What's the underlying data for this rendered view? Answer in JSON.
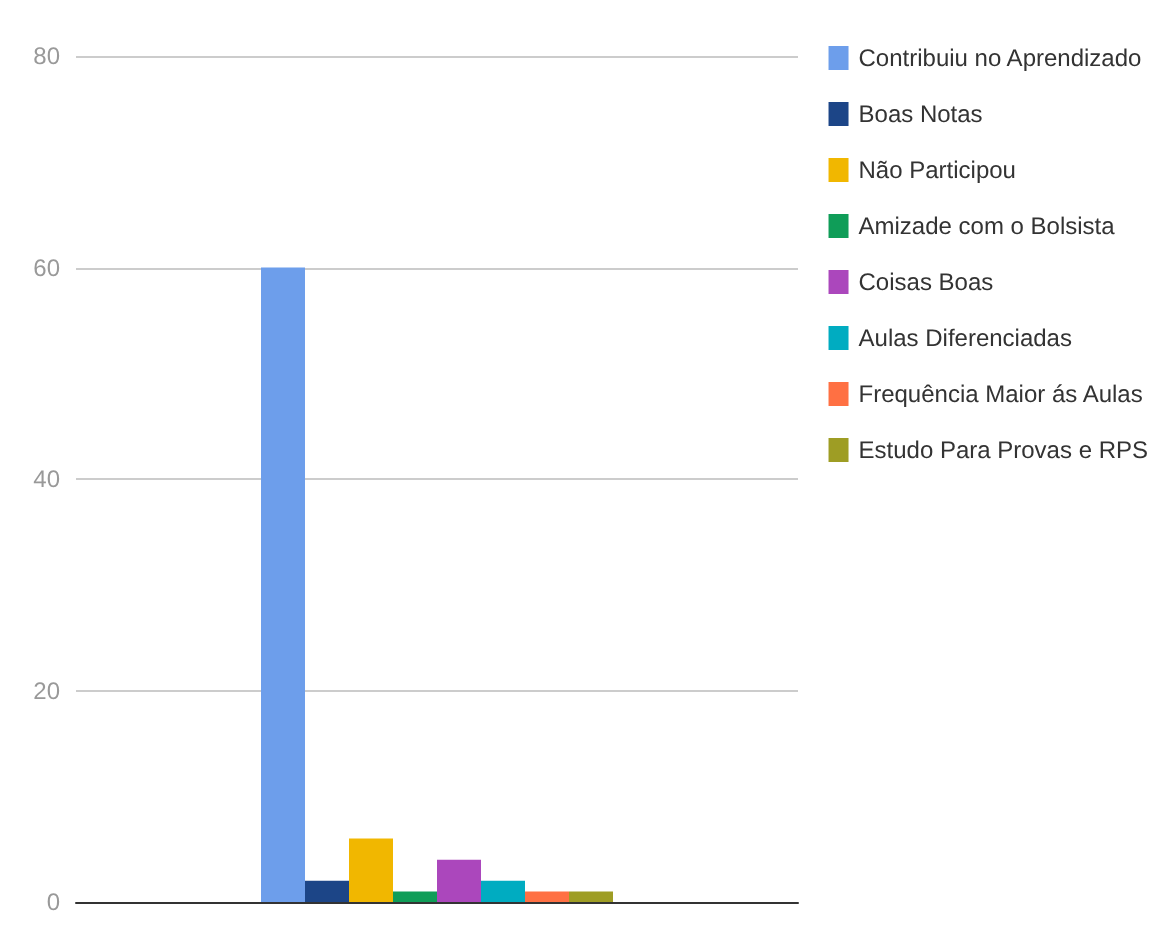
{
  "chart_data": {
    "type": "bar",
    "categories": [
      null
    ],
    "series": [
      {
        "name": "Contribuiu no Aprendizado",
        "color": "#6d9eeb",
        "values": [
          60
        ]
      },
      {
        "name": "Boas Notas",
        "color": "#1c4587",
        "values": [
          2
        ]
      },
      {
        "name": "Não Participou",
        "color": "#f1b700",
        "values": [
          6
        ]
      },
      {
        "name": "Amizade com o Bolsista",
        "color": "#0f9d58",
        "values": [
          1
        ]
      },
      {
        "name": "Coisas Boas",
        "color": "#ab47bc",
        "values": [
          4
        ]
      },
      {
        "name": "Aulas Diferenciadas",
        "color": "#00acc1",
        "values": [
          2
        ]
      },
      {
        "name": "Frequência Maior ás Aulas",
        "color": "#ff7043",
        "values": [
          1
        ]
      },
      {
        "name": "Estudo Para Provas e RPS",
        "color": "#9e9d24",
        "values": [
          1
        ]
      }
    ],
    "ylim": [
      0,
      80
    ],
    "yticks": [
      0,
      20,
      40,
      60,
      80
    ],
    "grid": true,
    "legend": "right"
  }
}
